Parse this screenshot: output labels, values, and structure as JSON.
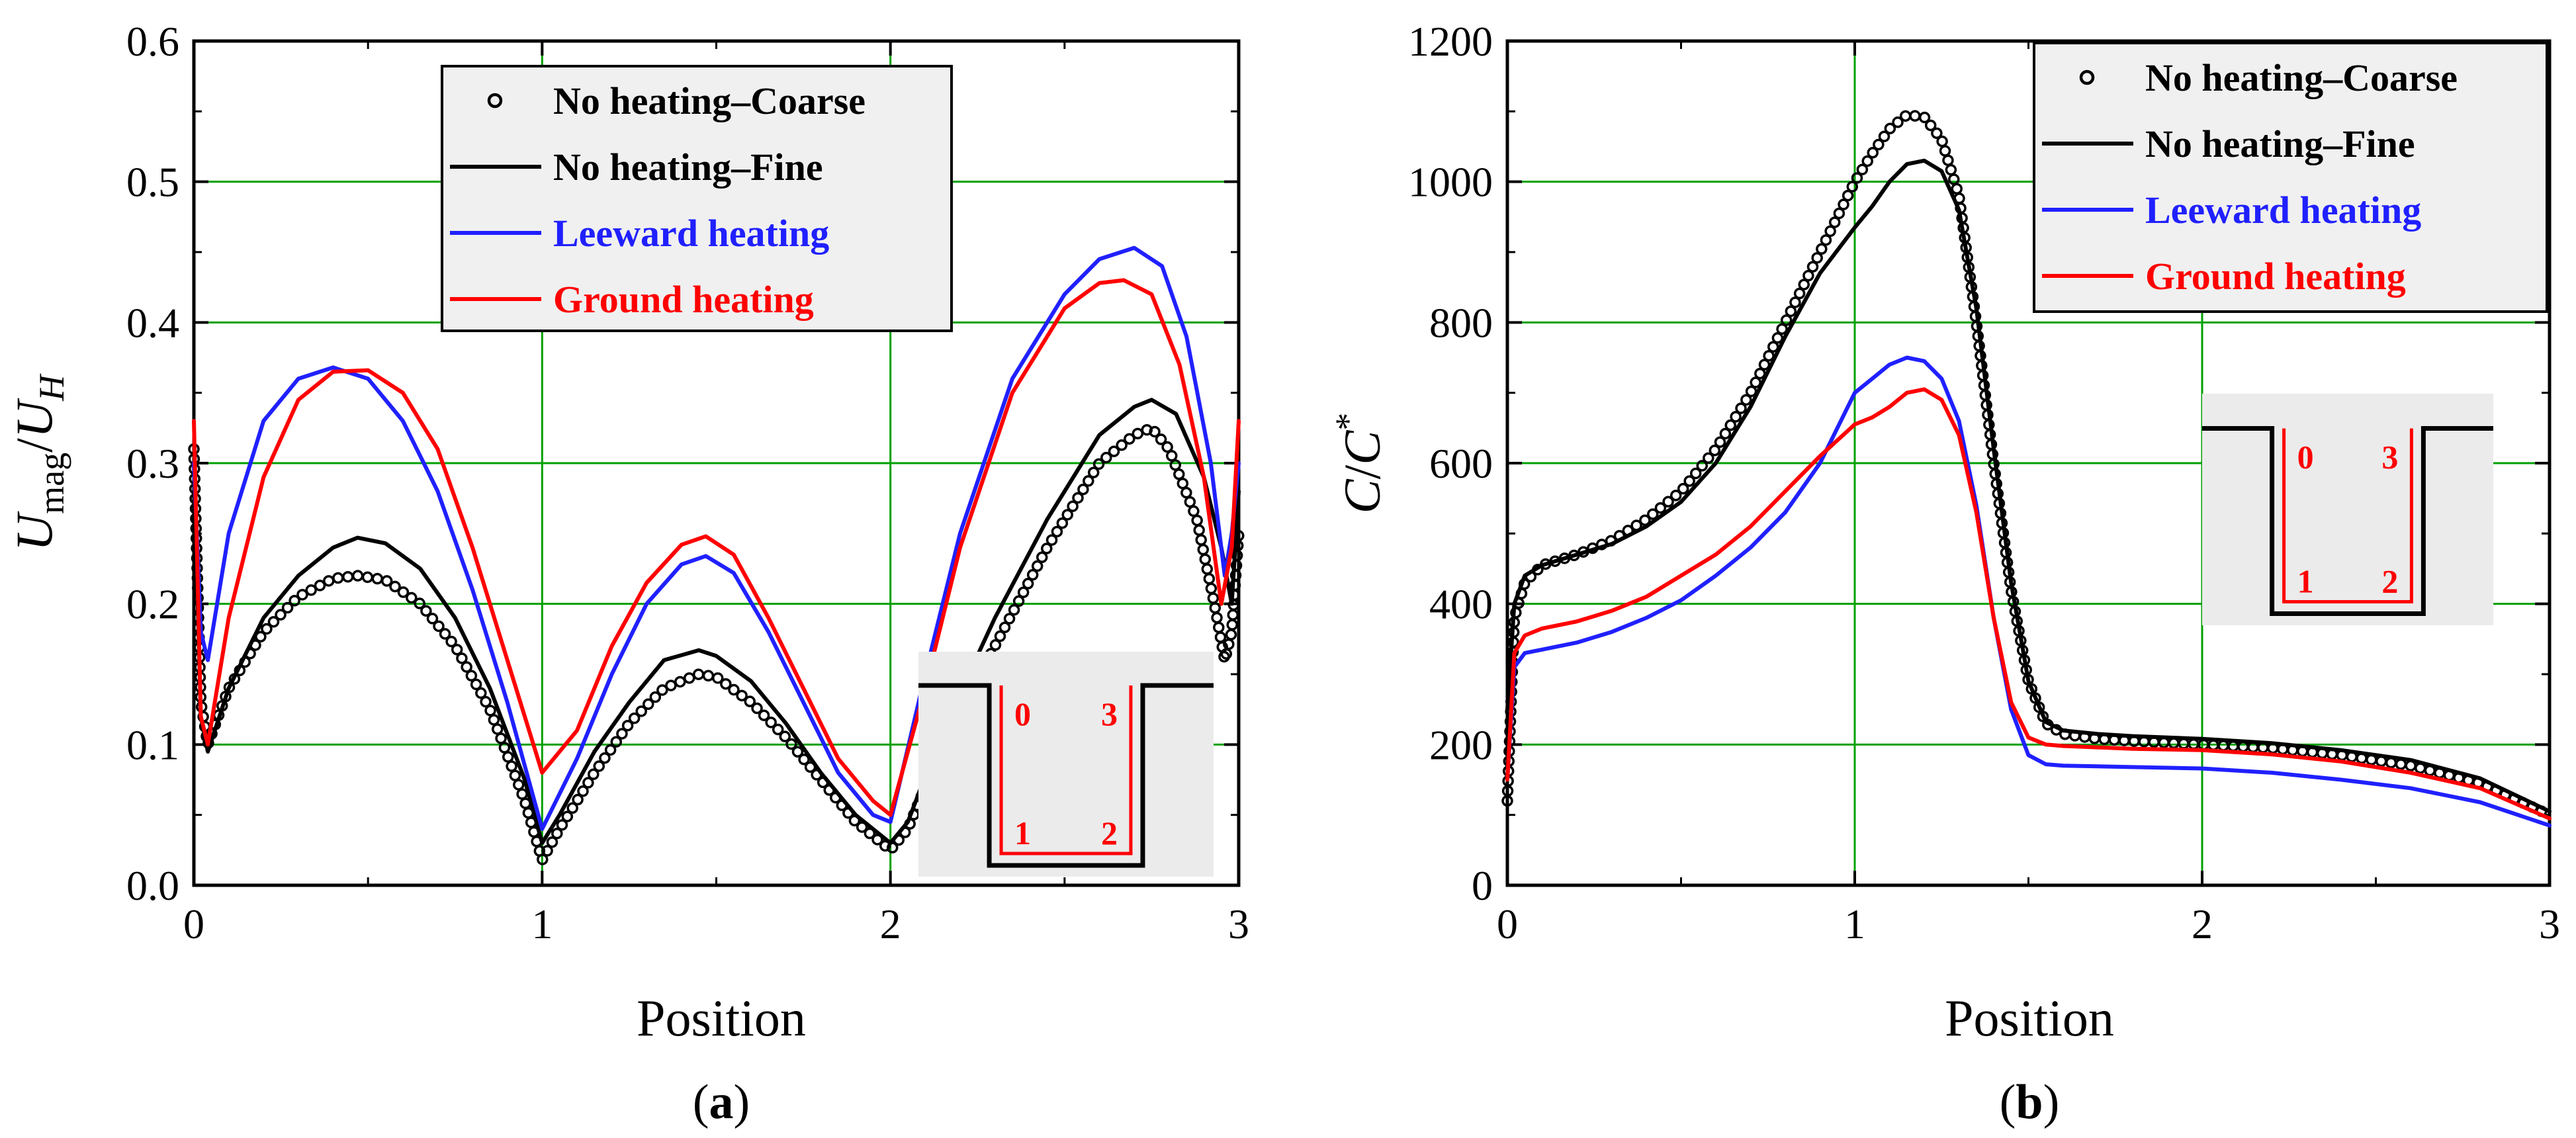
{
  "chart_data": [
    {
      "panel": "a",
      "type": "line",
      "caption": "(a)",
      "xlabel": "Position",
      "ylabel_main": "U",
      "ylabel_sub1": "mag",
      "ylabel_sep": "/",
      "ylabel_main2": "U",
      "ylabel_sub2": "H",
      "xlim": [
        0,
        3
      ],
      "ylim": [
        0,
        0.6
      ],
      "xticks": [
        0,
        1,
        2,
        3
      ],
      "xtick_labels": [
        "0",
        "1",
        "2",
        "3"
      ],
      "yticks": [
        0,
        0.1,
        0.2,
        0.3,
        0.4,
        0.5,
        0.6
      ],
      "ytick_labels": [
        "0.0",
        "0.1",
        "0.2",
        "0.3",
        "0.4",
        "0.5",
        "0.6"
      ],
      "grid": true,
      "legend_position": "top-center",
      "inset_labels": [
        "0",
        "3",
        "1",
        "2"
      ],
      "series": [
        {
          "name": "No heating–Coarse",
          "style": "markers",
          "color": "#000000",
          "x": [
            0,
            0.02,
            0.04,
            0.1,
            0.2,
            0.3,
            0.4,
            0.47,
            0.55,
            0.65,
            0.75,
            0.85,
            0.95,
            1.0,
            1.05,
            1.15,
            1.25,
            1.35,
            1.45,
            1.5,
            1.6,
            1.7,
            1.8,
            1.9,
            2.0,
            2.05,
            2.15,
            2.3,
            2.45,
            2.6,
            2.7,
            2.75,
            2.8,
            2.88,
            2.93,
            2.96,
            2.98,
            3.0
          ],
          "y": [
            0.31,
            0.13,
            0.1,
            0.14,
            0.18,
            0.205,
            0.218,
            0.22,
            0.217,
            0.2,
            0.17,
            0.125,
            0.06,
            0.018,
            0.04,
            0.08,
            0.115,
            0.14,
            0.15,
            0.148,
            0.13,
            0.105,
            0.075,
            0.045,
            0.025,
            0.04,
            0.1,
            0.17,
            0.24,
            0.3,
            0.32,
            0.325,
            0.31,
            0.26,
            0.2,
            0.16,
            0.18,
            0.25
          ]
        },
        {
          "name": "No heating–Fine",
          "style": "line",
          "color": "#000000",
          "x": [
            0,
            0.02,
            0.04,
            0.1,
            0.2,
            0.3,
            0.4,
            0.47,
            0.55,
            0.65,
            0.75,
            0.85,
            0.95,
            1.0,
            1.05,
            1.15,
            1.25,
            1.35,
            1.45,
            1.5,
            1.6,
            1.7,
            1.8,
            1.9,
            2.0,
            2.05,
            2.15,
            2.3,
            2.45,
            2.6,
            2.7,
            2.75,
            2.82,
            2.9,
            2.95,
            2.98,
            3.0
          ],
          "y": [
            0.3,
            0.12,
            0.095,
            0.14,
            0.19,
            0.22,
            0.24,
            0.247,
            0.243,
            0.225,
            0.19,
            0.14,
            0.075,
            0.03,
            0.05,
            0.095,
            0.13,
            0.16,
            0.167,
            0.163,
            0.145,
            0.115,
            0.08,
            0.05,
            0.03,
            0.045,
            0.11,
            0.19,
            0.26,
            0.32,
            0.34,
            0.345,
            0.335,
            0.29,
            0.24,
            0.2,
            0.28
          ]
        },
        {
          "name": "Leeward heating",
          "style": "line",
          "color": "#2020ff",
          "x": [
            0,
            0.02,
            0.04,
            0.1,
            0.2,
            0.3,
            0.4,
            0.5,
            0.6,
            0.7,
            0.8,
            0.9,
            1.0,
            1.1,
            1.2,
            1.3,
            1.4,
            1.47,
            1.55,
            1.65,
            1.75,
            1.85,
            1.95,
            2.0,
            2.1,
            2.2,
            2.35,
            2.5,
            2.6,
            2.7,
            2.78,
            2.85,
            2.92,
            2.96,
            2.98,
            3.0
          ],
          "y": [
            0.3,
            0.18,
            0.16,
            0.25,
            0.33,
            0.36,
            0.368,
            0.36,
            0.33,
            0.28,
            0.21,
            0.13,
            0.04,
            0.09,
            0.15,
            0.2,
            0.228,
            0.234,
            0.222,
            0.18,
            0.13,
            0.08,
            0.05,
            0.045,
            0.15,
            0.25,
            0.36,
            0.42,
            0.445,
            0.453,
            0.44,
            0.39,
            0.3,
            0.22,
            0.25,
            0.3
          ]
        },
        {
          "name": "Ground heating",
          "style": "line",
          "color": "#ff0000",
          "x": [
            0,
            0.02,
            0.04,
            0.1,
            0.2,
            0.3,
            0.4,
            0.5,
            0.6,
            0.7,
            0.8,
            0.9,
            1.0,
            1.1,
            1.2,
            1.3,
            1.4,
            1.47,
            1.55,
            1.65,
            1.75,
            1.85,
            1.95,
            2.0,
            2.1,
            2.2,
            2.35,
            2.5,
            2.6,
            2.67,
            2.75,
            2.83,
            2.9,
            2.95,
            2.98,
            3.0
          ],
          "y": [
            0.33,
            0.12,
            0.1,
            0.19,
            0.29,
            0.345,
            0.365,
            0.366,
            0.35,
            0.31,
            0.24,
            0.16,
            0.08,
            0.11,
            0.17,
            0.215,
            0.242,
            0.248,
            0.235,
            0.19,
            0.14,
            0.09,
            0.06,
            0.05,
            0.14,
            0.24,
            0.35,
            0.41,
            0.428,
            0.43,
            0.42,
            0.37,
            0.29,
            0.2,
            0.24,
            0.33
          ]
        }
      ]
    },
    {
      "panel": "b",
      "type": "line",
      "caption": "(b)",
      "xlabel": "Position",
      "ylabel_main": "C",
      "ylabel_sep": "/",
      "ylabel_main2": "C",
      "ylabel_sup": "*",
      "xlim": [
        0,
        3
      ],
      "ylim": [
        0,
        1200
      ],
      "xticks": [
        0,
        1,
        2,
        3
      ],
      "xtick_labels": [
        "0",
        "1",
        "2",
        "3"
      ],
      "yticks": [
        0,
        200,
        400,
        600,
        800,
        1000,
        1200
      ],
      "ytick_labels": [
        "0",
        "200",
        "400",
        "600",
        "800",
        "1000",
        "1200"
      ],
      "grid": true,
      "legend_position": "top-right",
      "inset_labels": [
        "0",
        "3",
        "1",
        "2"
      ],
      "series": [
        {
          "name": "No heating–Coarse",
          "style": "markers",
          "color": "#000000",
          "x": [
            0,
            0.02,
            0.05,
            0.1,
            0.2,
            0.3,
            0.4,
            0.5,
            0.6,
            0.7,
            0.8,
            0.9,
            1.0,
            1.05,
            1.1,
            1.15,
            1.2,
            1.25,
            1.3,
            1.35,
            1.4,
            1.45,
            1.5,
            1.55,
            1.6,
            1.7,
            1.8,
            2.0,
            2.2,
            2.4,
            2.6,
            2.8,
            3.0
          ],
          "y": [
            120,
            380,
            430,
            455,
            470,
            490,
            520,
            560,
            620,
            700,
            800,
            900,
            1000,
            1040,
            1075,
            1095,
            1092,
            1060,
            980,
            800,
            600,
            420,
            290,
            230,
            215,
            208,
            205,
            200,
            195,
            185,
            170,
            145,
            100
          ]
        },
        {
          "name": "No heating–Fine",
          "style": "line",
          "color": "#000000",
          "x": [
            0,
            0.02,
            0.05,
            0.1,
            0.2,
            0.3,
            0.4,
            0.5,
            0.6,
            0.7,
            0.8,
            0.9,
            1.0,
            1.05,
            1.1,
            1.15,
            1.2,
            1.25,
            1.3,
            1.35,
            1.4,
            1.45,
            1.5,
            1.55,
            1.6,
            1.7,
            1.8,
            2.0,
            2.2,
            2.4,
            2.6,
            2.8,
            3.0
          ],
          "y": [
            250,
            400,
            440,
            455,
            470,
            485,
            510,
            545,
            600,
            680,
            780,
            870,
            935,
            965,
            1000,
            1025,
            1030,
            1015,
            960,
            820,
            620,
            430,
            290,
            232,
            220,
            215,
            212,
            208,
            202,
            192,
            178,
            152,
            105
          ]
        },
        {
          "name": "Leeward heating",
          "style": "line",
          "color": "#2020ff",
          "x": [
            0,
            0.02,
            0.05,
            0.1,
            0.2,
            0.3,
            0.4,
            0.5,
            0.6,
            0.7,
            0.8,
            0.9,
            1.0,
            1.05,
            1.1,
            1.15,
            1.2,
            1.25,
            1.3,
            1.35,
            1.4,
            1.45,
            1.5,
            1.55,
            1.6,
            1.7,
            1.8,
            2.0,
            2.2,
            2.4,
            2.6,
            2.8,
            3.0
          ],
          "y": [
            150,
            310,
            330,
            335,
            345,
            360,
            380,
            405,
            440,
            480,
            530,
            600,
            700,
            720,
            740,
            750,
            745,
            720,
            660,
            540,
            380,
            250,
            185,
            172,
            170,
            169,
            168,
            166,
            160,
            150,
            138,
            118,
            85
          ]
        },
        {
          "name": "Ground heating",
          "style": "line",
          "color": "#ff0000",
          "x": [
            0,
            0.02,
            0.05,
            0.1,
            0.2,
            0.3,
            0.4,
            0.5,
            0.6,
            0.7,
            0.8,
            0.9,
            1.0,
            1.05,
            1.1,
            1.15,
            1.2,
            1.25,
            1.3,
            1.35,
            1.4,
            1.45,
            1.5,
            1.55,
            1.6,
            1.7,
            1.8,
            2.0,
            2.2,
            2.4,
            2.6,
            2.8,
            3.0
          ],
          "y": [
            150,
            330,
            355,
            365,
            375,
            390,
            410,
            440,
            470,
            510,
            560,
            610,
            655,
            665,
            680,
            700,
            705,
            690,
            640,
            530,
            380,
            260,
            210,
            200,
            198,
            196,
            194,
            192,
            186,
            176,
            160,
            138,
            95
          ]
        }
      ]
    }
  ],
  "legend": {
    "items": [
      {
        "label": "No heating–Coarse",
        "color": "#000000",
        "marker": "circle"
      },
      {
        "label": "No heating–Fine",
        "color": "#000000",
        "marker": "line"
      },
      {
        "label": "Leeward heating",
        "color": "#2020ff",
        "marker": "line"
      },
      {
        "label": "Ground heating",
        "color": "#ff0000",
        "marker": "line"
      }
    ]
  },
  "colors": {
    "grid": "#00a000",
    "axis": "#000000",
    "legend_bg": "#f0f0f0",
    "inset_bg": "#ebebeb",
    "coarse": "#000000",
    "fine": "#000000",
    "leeward": "#2020ff",
    "ground": "#ff0000",
    "inset_label": "#ff0000"
  }
}
